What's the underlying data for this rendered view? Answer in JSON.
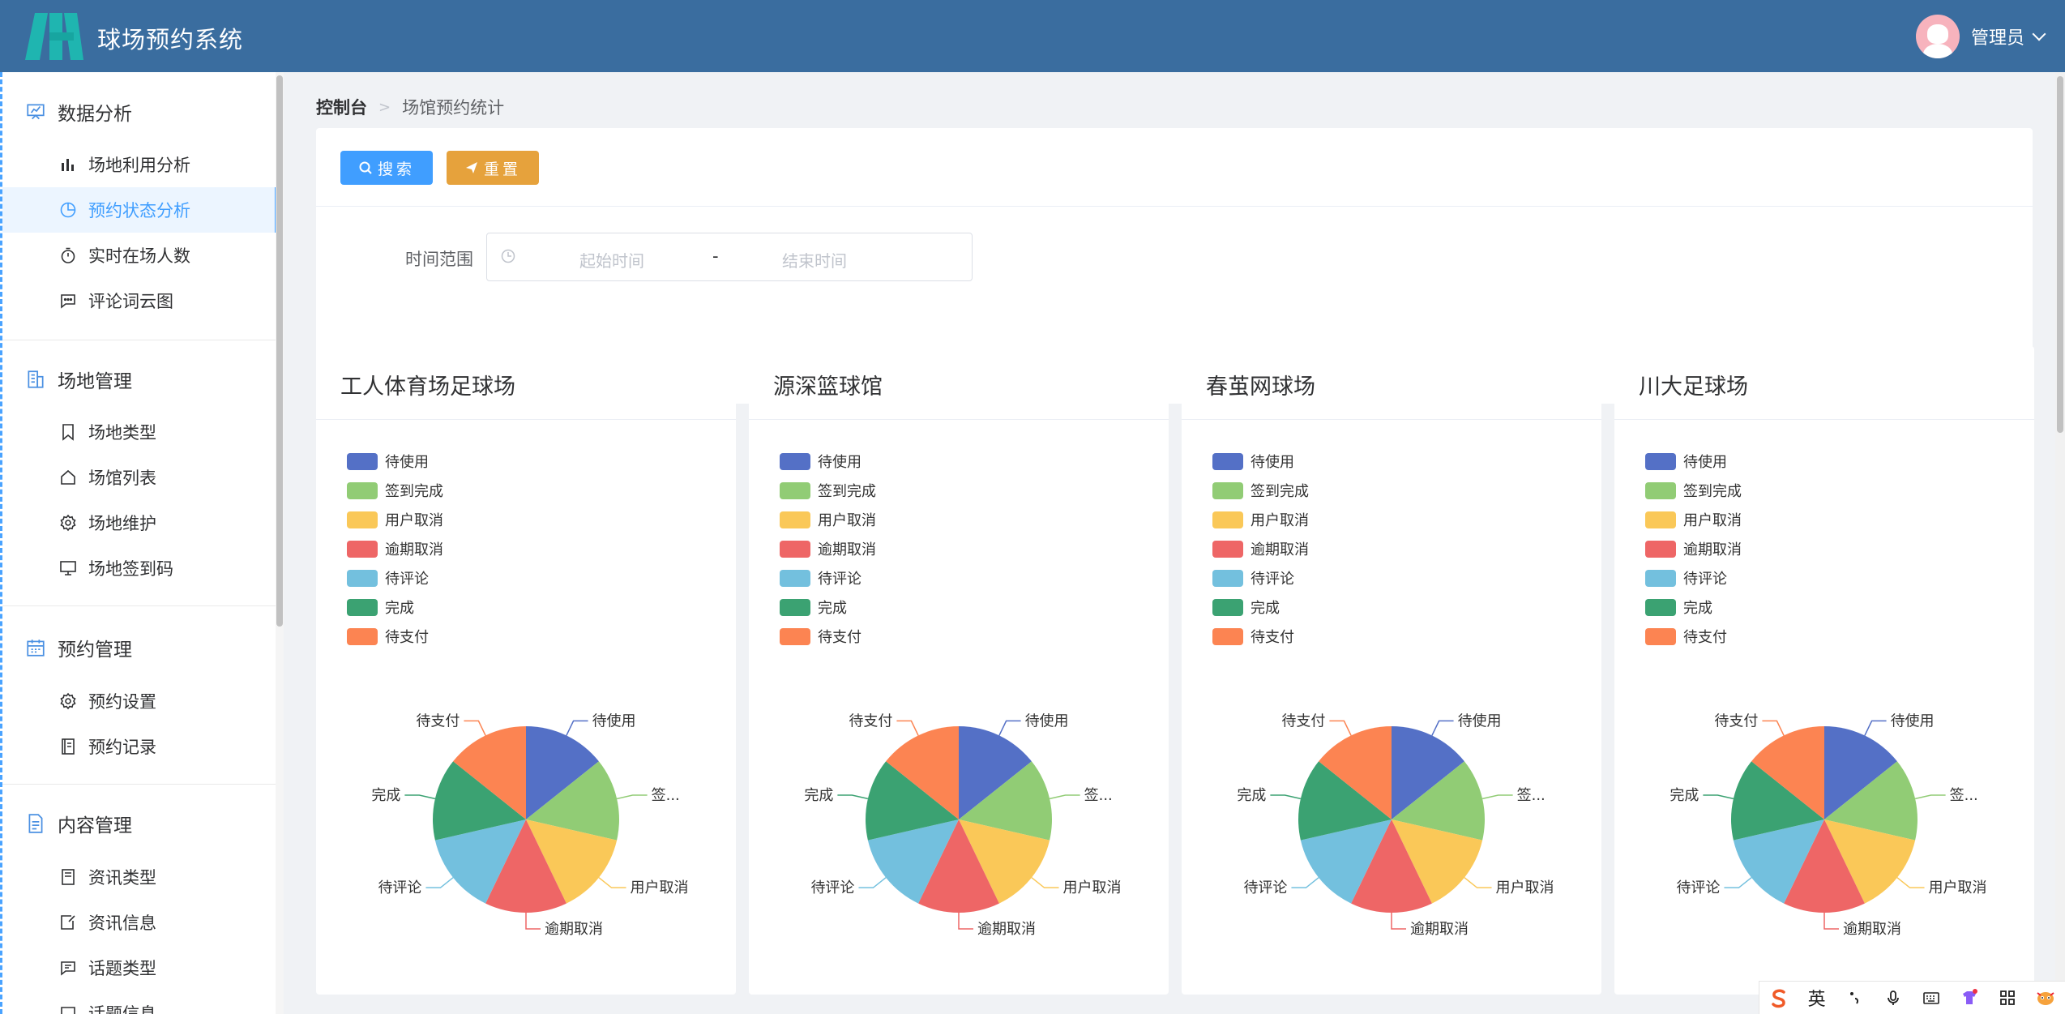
{
  "header": {
    "title": "球场预约系统",
    "user": "管理员"
  },
  "sidebar": {
    "groups": [
      {
        "title": "数据分析",
        "icon": "chart-board-icon",
        "items": [
          {
            "label": "场地利用分析",
            "icon": "bar-chart-icon"
          },
          {
            "label": "预约状态分析",
            "icon": "pie-chart-icon",
            "active": true
          },
          {
            "label": "实时在场人数",
            "icon": "stopwatch-icon"
          },
          {
            "label": "评论词云图",
            "icon": "chat-dots-icon"
          }
        ]
      },
      {
        "title": "场地管理",
        "icon": "building-icon",
        "items": [
          {
            "label": "场地类型",
            "icon": "bookmark-icon"
          },
          {
            "label": "场馆列表",
            "icon": "house-icon"
          },
          {
            "label": "场地维护",
            "icon": "gear-icon"
          },
          {
            "label": "场地签到码",
            "icon": "monitor-icon"
          }
        ]
      },
      {
        "title": "预约管理",
        "icon": "calendar-icon",
        "items": [
          {
            "label": "预约设置",
            "icon": "gear-icon"
          },
          {
            "label": "预约记录",
            "icon": "notebook-icon"
          }
        ]
      },
      {
        "title": "内容管理",
        "icon": "document-icon",
        "items": [
          {
            "label": "资讯类型",
            "icon": "notebook-icon"
          },
          {
            "label": "资讯信息",
            "icon": "edit-doc-icon"
          },
          {
            "label": "话题类型",
            "icon": "chat-line-icon"
          },
          {
            "label": "话题信息",
            "icon": "chat-icon"
          }
        ]
      }
    ]
  },
  "breadcrumb": {
    "home": "控制台",
    "current": "场馆预约统计"
  },
  "toolbar": {
    "search_label": "搜索",
    "reset_label": "重置"
  },
  "filter": {
    "label": "时间范围",
    "start_placeholder": "起始时间",
    "separator": "-",
    "end_placeholder": "结束时间"
  },
  "legend": {
    "items": [
      {
        "label": "待使用",
        "color": "#5470c6"
      },
      {
        "label": "签到完成",
        "color": "#91cc75"
      },
      {
        "label": "用户取消",
        "color": "#fac858"
      },
      {
        "label": "逾期取消",
        "color": "#ee6666"
      },
      {
        "label": "待评论",
        "color": "#73c0de"
      },
      {
        "label": "完成",
        "color": "#3ba272"
      },
      {
        "label": "待支付",
        "color": "#fc8452"
      }
    ]
  },
  "chart_data": [
    {
      "type": "pie",
      "title": "工人体育场足球场",
      "categories": [
        "待使用",
        "签到完成",
        "用户取消",
        "逾期取消",
        "待评论",
        "完成",
        "待支付"
      ],
      "values": [
        1,
        1,
        1,
        1,
        1,
        1,
        1
      ],
      "slice_labels": [
        "待使用",
        "签...",
        "用户取消",
        "逾期取消",
        "待评论",
        "完成",
        "待支付"
      ],
      "legend": "top-left"
    },
    {
      "type": "pie",
      "title": "源深篮球馆",
      "categories": [
        "待使用",
        "签到完成",
        "用户取消",
        "逾期取消",
        "待评论",
        "完成",
        "待支付"
      ],
      "values": [
        1,
        1,
        1,
        1,
        1,
        1,
        1
      ],
      "slice_labels": [
        "待使用",
        "签...",
        "用户取消",
        "逾期取消",
        "待评论",
        "完成",
        "待支付"
      ],
      "legend": "top-left"
    },
    {
      "type": "pie",
      "title": "春茧网球场",
      "categories": [
        "待使用",
        "签到完成",
        "用户取消",
        "逾期取消",
        "待评论",
        "完成",
        "待支付"
      ],
      "values": [
        1,
        1,
        1,
        1,
        1,
        1,
        1
      ],
      "slice_labels": [
        "待使用",
        "签...",
        "用户取消",
        "逾期取消",
        "待评论",
        "完成",
        "待支付"
      ],
      "legend": "top-left"
    },
    {
      "type": "pie",
      "title": "川大足球场",
      "categories": [
        "待使用",
        "签到完成",
        "用户取消",
        "逾期取消",
        "待评论",
        "完成",
        "待支付"
      ],
      "values": [
        1,
        1,
        1,
        1,
        1,
        1,
        1
      ],
      "slice_labels": [
        "待使用",
        "签...",
        "用户取消",
        "逾期取消",
        "待评论",
        "完成",
        "待支付"
      ],
      "legend": "top-left"
    }
  ],
  "ime": {
    "lang": "英"
  }
}
